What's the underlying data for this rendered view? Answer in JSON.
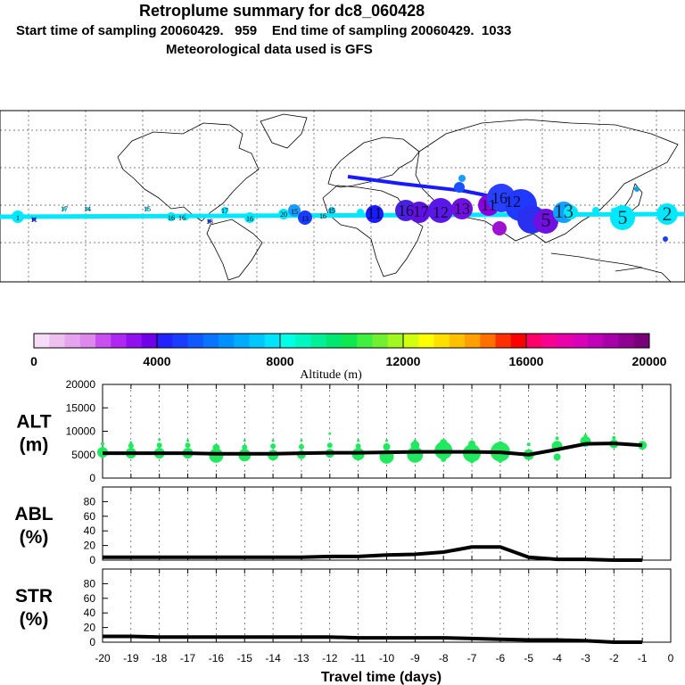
{
  "header": {
    "title": "Retroplume summary for dc8_060428",
    "start_label": "Start time of sampling",
    "start_value": "20060429.   959",
    "end_label": "End time of sampling",
    "end_value": "20060429.  1033",
    "met_label": "Meteorological data used is GFS"
  },
  "colors": {
    "plume_low": "#00e8ff",
    "plume_mid": "#1a1aff",
    "plume_high": "#8800dd",
    "alt_dots": "#22e860",
    "line": "#000000"
  },
  "map": {
    "markers": [
      "1",
      "11",
      "17",
      "14",
      "15",
      "16",
      "16",
      "13",
      "17",
      "16",
      "20",
      "15",
      "13",
      "16",
      "15",
      "11",
      "16",
      "17",
      "12",
      "13",
      "11",
      "16",
      "12",
      "5",
      "13",
      "5",
      "2"
    ]
  },
  "chart_data": [
    {
      "type": "colorbar",
      "title": "Altitude (m)",
      "range": [
        0,
        20000
      ],
      "tick_labels": [
        "0",
        "4000",
        "8000",
        "12000",
        "16000",
        "20000"
      ],
      "colors": [
        "#f6dcf6",
        "#eec0f0",
        "#e6a4ee",
        "#de88ec",
        "#c850f0",
        "#b028f0",
        "#9010f0",
        "#7000e8",
        "#2222ff",
        "#1a3cff",
        "#1058ff",
        "#0874ff",
        "#0090ff",
        "#00acff",
        "#00c8ff",
        "#00e4ff",
        "#00ffe6",
        "#00f8c0",
        "#00f098",
        "#00e870",
        "#10e850",
        "#40f040",
        "#70f030",
        "#a0f820",
        "#d0ff10",
        "#ffff00",
        "#ffe000",
        "#ffc000",
        "#ffa000",
        "#ff7000",
        "#ff3000",
        "#ff0000",
        "#ff0068",
        "#f80090",
        "#e800a8",
        "#d800b8",
        "#c000b8",
        "#a800a8",
        "#900090",
        "#780078"
      ]
    },
    {
      "type": "scatter",
      "panel": "alt",
      "ylabel_line1": "ALT",
      "ylabel_line2": "(m)",
      "ylim": [
        0,
        20000
      ],
      "y_ticks": [
        "0",
        "5000",
        "10000",
        "15000",
        "20000"
      ],
      "xlim": [
        -20,
        0
      ],
      "line_x": [
        -20,
        -19,
        -18,
        -17,
        -16,
        -15,
        -14,
        -13,
        -12,
        -11,
        -10,
        -9,
        -8,
        -7,
        -6,
        -5,
        -4,
        -3,
        -2,
        -1
      ],
      "line_y": [
        5300,
        5300,
        5300,
        5300,
        5200,
        5200,
        5200,
        5300,
        5400,
        5400,
        5500,
        5600,
        5600,
        5600,
        5500,
        5000,
        6100,
        7300,
        7400,
        7000
      ],
      "dots": [
        [
          -20,
          5500,
          6
        ],
        [
          -20,
          7300,
          2
        ],
        [
          -19,
          5300,
          6
        ],
        [
          -19,
          6900,
          3
        ],
        [
          -19,
          7600,
          1.5
        ],
        [
          -18,
          5300,
          6
        ],
        [
          -18,
          7000,
          3
        ],
        [
          -18,
          8200,
          1.5
        ],
        [
          -17,
          5300,
          6
        ],
        [
          -17,
          7000,
          3
        ],
        [
          -17,
          8000,
          1.5
        ],
        [
          -16,
          4800,
          8
        ],
        [
          -16,
          6500,
          4
        ],
        [
          -15,
          4900,
          7
        ],
        [
          -15,
          6600,
          3
        ],
        [
          -15,
          8000,
          1.5
        ],
        [
          -14,
          4900,
          6
        ],
        [
          -14,
          6800,
          3
        ],
        [
          -14,
          8000,
          1.5
        ],
        [
          -13,
          5000,
          5
        ],
        [
          -13,
          6700,
          3
        ],
        [
          -13,
          8000,
          1.5
        ],
        [
          -12,
          5300,
          5
        ],
        [
          -12,
          7000,
          3
        ],
        [
          -12,
          9500,
          1.5
        ],
        [
          -11,
          5100,
          7
        ],
        [
          -11,
          6800,
          3
        ],
        [
          -11,
          8000,
          1.5
        ],
        [
          -10,
          4600,
          8
        ],
        [
          -10,
          6700,
          4
        ],
        [
          -10,
          8000,
          1.5
        ],
        [
          -9,
          5000,
          9
        ],
        [
          -9,
          7000,
          5
        ],
        [
          -9,
          8000,
          1.5
        ],
        [
          -8,
          5900,
          10
        ],
        [
          -8,
          4000,
          3
        ],
        [
          -8,
          7600,
          4
        ],
        [
          -7,
          5300,
          10
        ],
        [
          -7,
          7300,
          4
        ],
        [
          -7,
          3500,
          2
        ],
        [
          -6,
          5600,
          11
        ],
        [
          -6,
          7300,
          3
        ],
        [
          -6,
          3600,
          2
        ],
        [
          -5,
          5000,
          6
        ],
        [
          -5,
          7200,
          2
        ],
        [
          -4,
          6800,
          6
        ],
        [
          -4,
          4500,
          4
        ],
        [
          -4,
          8500,
          2
        ],
        [
          -3,
          7800,
          6
        ],
        [
          -3,
          9000,
          2
        ],
        [
          -2,
          7300,
          5
        ],
        [
          -2,
          8600,
          2
        ],
        [
          -1,
          7000,
          5
        ]
      ]
    },
    {
      "type": "line",
      "panel": "abl",
      "ylabel_line1": "ABL",
      "ylabel_line2": "(%)",
      "ylim": [
        0,
        100
      ],
      "y_ticks": [
        "0",
        "20",
        "40",
        "60",
        "80"
      ],
      "x": [
        -20,
        -19,
        -18,
        -17,
        -16,
        -15,
        -14,
        -13,
        -12,
        -11,
        -10,
        -9,
        -8,
        -7,
        -6,
        -5,
        -4,
        -3,
        -2,
        -1
      ],
      "y": [
        4,
        4,
        4,
        4,
        4,
        4,
        4,
        4,
        5,
        5,
        7,
        8,
        11,
        18,
        18,
        4,
        1,
        1,
        0,
        0
      ]
    },
    {
      "type": "line",
      "panel": "str",
      "ylabel_line1": "STR",
      "ylabel_line2": "(%)",
      "ylim": [
        0,
        100
      ],
      "y_ticks": [
        "0",
        "20",
        "40",
        "60",
        "80"
      ],
      "x": [
        -20,
        -19,
        -18,
        -17,
        -16,
        -15,
        -14,
        -13,
        -12,
        -11,
        -10,
        -9,
        -8,
        -7,
        -6,
        -5,
        -4,
        -3,
        -2,
        -1
      ],
      "y": [
        8,
        8,
        7,
        7,
        7,
        7,
        7,
        7,
        7,
        6,
        6,
        6,
        6,
        5,
        4,
        3,
        3,
        2,
        0,
        0
      ],
      "xlabel": "Travel time (days)",
      "x_ticks": [
        "-20",
        "-19",
        "-18",
        "-17",
        "-16",
        "-15",
        "-14",
        "-13",
        "-12",
        "-11",
        "-10",
        "-9",
        "-8",
        "-7",
        "-6",
        "-5",
        "-4",
        "-3",
        "-2",
        "-1",
        "0"
      ]
    }
  ]
}
